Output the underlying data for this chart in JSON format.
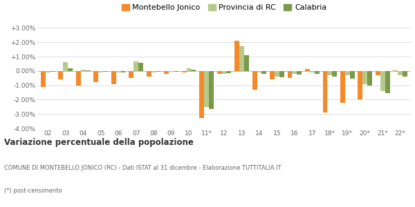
{
  "years": [
    "02",
    "03",
    "04",
    "05",
    "06",
    "07",
    "08",
    "09",
    "10",
    "11*",
    "12",
    "13",
    "14",
    "15",
    "16",
    "17",
    "18*",
    "19*",
    "20*",
    "21*",
    "22*"
  ],
  "montebello": [
    -1.1,
    -0.6,
    -1.0,
    -0.8,
    -0.9,
    -0.5,
    -0.4,
    -0.2,
    -0.1,
    -3.3,
    -0.2,
    2.1,
    -1.3,
    -0.6,
    -0.5,
    0.15,
    -2.9,
    -2.2,
    -2.0,
    -0.3,
    0.05
  ],
  "provincia": [
    -0.1,
    0.6,
    0.1,
    -0.1,
    -0.1,
    0.65,
    -0.1,
    0.0,
    0.2,
    -2.5,
    -0.2,
    1.7,
    -0.1,
    -0.4,
    -0.2,
    -0.1,
    -0.3,
    -0.3,
    -0.9,
    -1.4,
    -0.3
  ],
  "calabria": [
    -0.05,
    0.2,
    0.05,
    -0.05,
    -0.1,
    0.55,
    -0.05,
    -0.05,
    0.1,
    -2.65,
    -0.15,
    1.1,
    -0.2,
    -0.45,
    -0.25,
    -0.2,
    -0.4,
    -0.55,
    -1.0,
    -1.55,
    -0.4
  ],
  "montebello_color": "#f5892a",
  "provincia_color": "#b5c98a",
  "calabria_color": "#7a9a4a",
  "bg_color": "#ffffff",
  "grid_color": "#dddddd",
  "ylim": [
    -4.0,
    3.5
  ],
  "yticks": [
    -4.0,
    -3.0,
    -2.0,
    -1.0,
    0.0,
    1.0,
    2.0,
    3.0
  ],
  "title": "Variazione percentuale della popolazione",
  "subtitle": "COMUNE DI MONTEBELLO JONICO (RC) - Dati ISTAT al 31 dicembre - Elaborazione TUTTITALIA.IT",
  "footnote": "(*) post-censimento",
  "legend_labels": [
    "Montebello Jonico",
    "Provincia di RC",
    "Calabria"
  ],
  "bar_width": 0.27
}
